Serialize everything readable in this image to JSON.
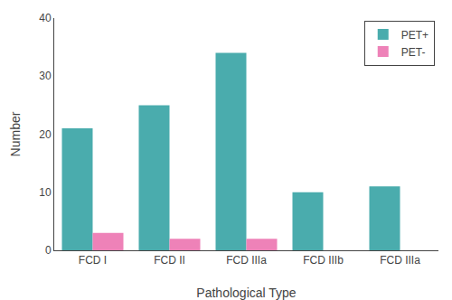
{
  "chart_data": {
    "type": "bar",
    "xlabel": "Pathological Type",
    "ylabel": "Number",
    "categories": [
      "FCD I",
      "FCD II",
      "FCD IIIa",
      "FCD IIIb",
      "FCD IIIa"
    ],
    "series": [
      {
        "name": "PET+",
        "color": "#4AACAD",
        "values": [
          21,
          25,
          34,
          10,
          11
        ]
      },
      {
        "name": "PET-",
        "color": "#EE82B8",
        "values": [
          3,
          2,
          2,
          0,
          0
        ]
      }
    ],
    "ylim": [
      0,
      40
    ],
    "yticks": [
      0,
      10,
      20,
      30,
      40
    ],
    "grid": false,
    "legend": "upper right"
  }
}
